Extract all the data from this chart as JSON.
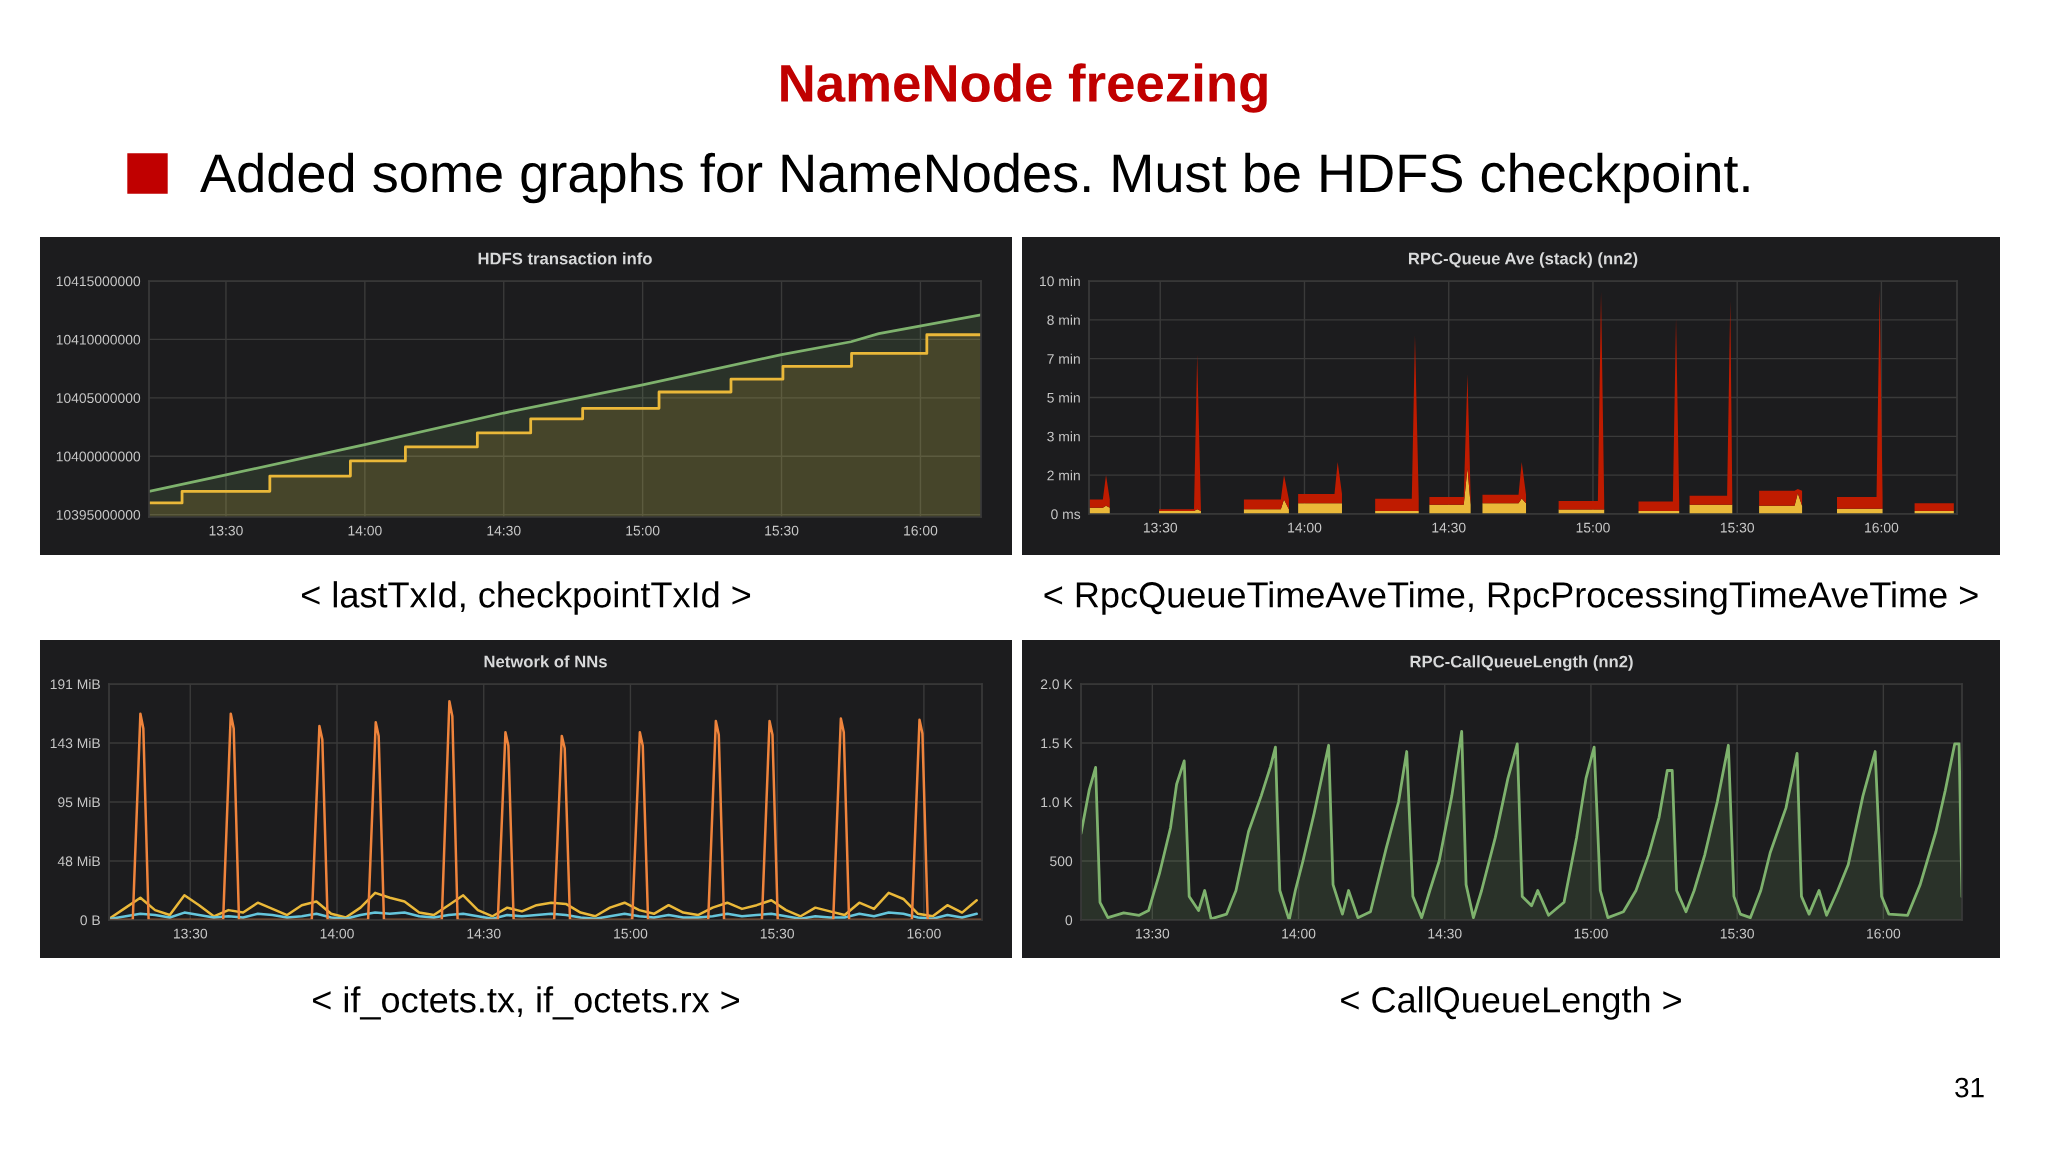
{
  "chart_data": [
    {
      "type": "other",
      "title": "NameNode freezing",
      "subtitle": "Added some graphs for NameNodes. Must be HDFS checkpoint.",
      "annotations": [
        "31"
      ]
    },
    {
      "type": "area",
      "title": "HDFS transaction info",
      "annotations": [
        "< lastTxId, checkpointTxId >"
      ],
      "grid": true,
      "xlim": [
        13.223,
        16.218
      ],
      "ylim": [
        10394800000,
        10415000000
      ],
      "xticks": [
        {
          "value": 13.5,
          "label": "13:30"
        },
        {
          "value": 14,
          "label": "14:00"
        },
        {
          "value": 14.5,
          "label": "14:30"
        },
        {
          "value": 15,
          "label": "15:00"
        },
        {
          "value": 15.5,
          "label": "15:30"
        },
        {
          "value": 16,
          "label": "16:00"
        }
      ],
      "yticks": [
        10395000000,
        10400000000,
        10405000000,
        10410000000,
        10415000000
      ],
      "series": [
        {
          "type": "area",
          "color": "#7eb26d",
          "x": [
            13.223,
            13.5,
            14.0,
            14.5,
            15.0,
            15.5,
            15.75,
            15.85,
            16.218
          ],
          "values": [
            10397000000,
            10398400000,
            10401000000,
            10403700000,
            10406100000,
            10408700000,
            10409800000,
            10410500000,
            10412100000
          ]
        },
        {
          "type": "area",
          "color": "#eab839",
          "x": [
            13.223,
            13.342,
            13.342,
            13.658,
            13.658,
            13.948,
            13.948,
            14.146,
            14.146,
            14.405,
            14.405,
            14.597,
            14.597,
            14.784,
            14.784,
            15.059,
            15.059,
            15.318,
            15.318,
            15.505,
            15.505,
            15.752,
            15.752,
            16.023,
            16.023,
            16.218
          ],
          "values": [
            10396000000,
            10396000000,
            10397000000,
            10397000000,
            10398300000,
            10398300000,
            10399600000,
            10399600000,
            10400800000,
            10400800000,
            10402000000,
            10402000000,
            10403200000,
            10403200000,
            10404100000,
            10404100000,
            10405500000,
            10405500000,
            10406600000,
            10406600000,
            10407700000,
            10407700000,
            10408800000,
            10408800000,
            10410400000,
            10410400000
          ]
        }
      ]
    },
    {
      "type": "area",
      "stacked": true,
      "title": "RPC-Queue Ave (stack) (nn2)",
      "annotations": [
        "< RpcQueueTimeAveTime, RpcProcessingTimeAveTime >"
      ],
      "grid": true,
      "xlim": [
        13.253,
        16.262
      ],
      "ylim": [
        0,
        10
      ],
      "xticks": [
        {
          "value": 13.5,
          "label": "13:30"
        },
        {
          "value": 14,
          "label": "14:00"
        },
        {
          "value": 14.5,
          "label": "14:30"
        },
        {
          "value": 15,
          "label": "15:00"
        },
        {
          "value": 15.5,
          "label": "15:30"
        },
        {
          "value": 16,
          "label": "16:00"
        }
      ],
      "yticks": [
        {
          "value": 0,
          "label": "0 ms"
        },
        {
          "value": 1.6667,
          "label": "2 min"
        },
        {
          "value": 3.3333,
          "label": "3 min"
        },
        {
          "value": 5,
          "label": "5 min"
        },
        {
          "value": 6.6667,
          "label": "7 min"
        },
        {
          "value": 8.3333,
          "label": "8 min"
        },
        {
          "value": 10,
          "label": "10 min"
        }
      ],
      "x": [
        13.253,
        13.301,
        13.312,
        13.325,
        13.33,
        13.496,
        13.617,
        13.628,
        13.641,
        13.65,
        13.79,
        13.918,
        13.929,
        13.946,
        13.955,
        13.978,
        14.104,
        14.115,
        14.13,
        14.14,
        14.245,
        14.372,
        14.383,
        14.396,
        14.41,
        14.433,
        14.552,
        14.565,
        14.576,
        14.59,
        14.617,
        14.742,
        14.753,
        14.768,
        14.78,
        14.881,
        15.017,
        15.028,
        15.039,
        15.05,
        15.158,
        15.277,
        15.288,
        15.299,
        15.31,
        15.335,
        15.465,
        15.476,
        15.483,
        15.49,
        15.576,
        15.699,
        15.71,
        15.725,
        15.74,
        15.846,
        15.983,
        15.994,
        16.004,
        16.02,
        16.115,
        16.251
      ],
      "series": [
        {
          "color": "#eab839",
          "values": [
            0.27,
            0.27,
            0.35,
            0.27,
            null,
            0.13,
            0.13,
            0.2,
            0.13,
            null,
            0.2,
            0.2,
            0.62,
            0.2,
            null,
            0.46,
            0.46,
            0.46,
            0.46,
            null,
            0.13,
            0.13,
            0.13,
            0.13,
            null,
            0.4,
            0.4,
            1.96,
            0.4,
            null,
            0.46,
            0.46,
            0.67,
            0.46,
            null,
            0.19,
            0.19,
            0.19,
            0.19,
            null,
            0.13,
            0.13,
            0.13,
            0.13,
            null,
            0.4,
            0.4,
            0.4,
            0.4,
            null,
            0.35,
            0.35,
            0.89,
            0.35,
            null,
            0.22,
            0.22,
            0.22,
            0.22,
            null,
            0.13,
            0.13
          ]
        },
        {
          "color": "#bf1b00",
          "values": [
            0.35,
            0.35,
            1.32,
            0.35,
            null,
            0.07,
            0.07,
            6.65,
            0.07,
            null,
            0.42,
            0.42,
            1.05,
            0.42,
            null,
            0.4,
            0.4,
            1.77,
            0.4,
            null,
            0.52,
            0.52,
            7.53,
            0.52,
            null,
            0.33,
            0.33,
            4.04,
            0.33,
            null,
            0.37,
            0.37,
            1.56,
            0.37,
            null,
            0.37,
            0.37,
            9.35,
            0.37,
            null,
            0.41,
            0.41,
            8.26,
            0.41,
            null,
            0.38,
            0.38,
            8.74,
            0.38,
            null,
            0.65,
            0.65,
            0.18,
            0.65,
            null,
            0.51,
            0.51,
            9.38,
            0.51,
            null,
            0.33,
            0.33
          ]
        }
      ]
    },
    {
      "type": "line",
      "title": "Network of NNs",
      "annotations": [
        "< if_octets.tx, if_octets.rx >"
      ],
      "grid": true,
      "xlim": [
        13.223,
        16.198
      ],
      "ylim": [
        0,
        191
      ],
      "xticks": [
        {
          "value": 13.5,
          "label": "13:30"
        },
        {
          "value": 14,
          "label": "14:00"
        },
        {
          "value": 14.5,
          "label": "14:30"
        },
        {
          "value": 15,
          "label": "15:00"
        },
        {
          "value": 15.5,
          "label": "15:30"
        },
        {
          "value": 16,
          "label": "16:00"
        }
      ],
      "yticks": [
        {
          "value": 0,
          "label": "0 B"
        },
        {
          "value": 47.75,
          "label": "48 MiB"
        },
        {
          "value": 95.5,
          "label": "95 MiB"
        },
        {
          "value": 143.25,
          "label": "143 MiB"
        },
        {
          "value": 191,
          "label": "191 MiB"
        }
      ],
      "series": [
        {
          "color": "#eab839",
          "x": [
            13.23,
            13.28,
            13.33,
            13.38,
            13.43,
            13.48,
            13.53,
            13.58,
            13.63,
            13.68,
            13.73,
            13.78,
            13.83,
            13.88,
            13.93,
            13.98,
            14.03,
            14.08,
            14.13,
            14.18,
            14.23,
            14.28,
            14.33,
            14.38,
            14.43,
            14.48,
            14.53,
            14.58,
            14.63,
            14.68,
            14.73,
            14.78,
            14.83,
            14.88,
            14.93,
            14.98,
            15.03,
            15.08,
            15.13,
            15.18,
            15.23,
            15.28,
            15.33,
            15.38,
            15.43,
            15.48,
            15.53,
            15.58,
            15.63,
            15.68,
            15.73,
            15.78,
            15.83,
            15.88,
            15.93,
            15.98,
            16.03,
            16.08,
            16.13,
            16.18
          ],
          "values": [
            2,
            10,
            18,
            8,
            4,
            20,
            12,
            3,
            8,
            6,
            14,
            9,
            4,
            12,
            15,
            5,
            2,
            10,
            22,
            18,
            15,
            6,
            4,
            12,
            20,
            8,
            3,
            10,
            7,
            12,
            14,
            13,
            6,
            3,
            10,
            14,
            8,
            5,
            12,
            6,
            4,
            10,
            14,
            9,
            12,
            16,
            8,
            3,
            10,
            7,
            4,
            14,
            9,
            22,
            17,
            5,
            3,
            12,
            6,
            16
          ]
        },
        {
          "color": "#65c5db",
          "x": [
            13.23,
            13.28,
            13.33,
            13.38,
            13.43,
            13.48,
            13.53,
            13.58,
            13.63,
            13.68,
            13.73,
            13.78,
            13.83,
            13.88,
            13.93,
            13.98,
            14.03,
            14.08,
            14.13,
            14.18,
            14.23,
            14.28,
            14.33,
            14.38,
            14.43,
            14.48,
            14.53,
            14.58,
            14.63,
            14.68,
            14.73,
            14.78,
            14.83,
            14.88,
            14.93,
            14.98,
            15.03,
            15.08,
            15.13,
            15.18,
            15.23,
            15.28,
            15.33,
            15.38,
            15.43,
            15.48,
            15.53,
            15.58,
            15.63,
            15.68,
            15.73,
            15.78,
            15.83,
            15.88,
            15.93,
            15.98,
            16.03,
            16.08,
            16.13,
            16.18
          ],
          "values": [
            1,
            3,
            5,
            4,
            2,
            6,
            4,
            2,
            3,
            2,
            5,
            4,
            2,
            3,
            5,
            2,
            1,
            4,
            6,
            5,
            6,
            3,
            2,
            4,
            5,
            3,
            1,
            4,
            3,
            4,
            5,
            4,
            2,
            1,
            3,
            5,
            3,
            2,
            4,
            2,
            2,
            3,
            5,
            3,
            4,
            5,
            3,
            1,
            3,
            2,
            2,
            5,
            3,
            6,
            5,
            2,
            1,
            4,
            2,
            5
          ]
        },
        {
          "color": "#ef843c",
          "x": [
            13.223,
            13.304,
            13.33,
            13.34,
            13.358,
            13.612,
            13.638,
            13.648,
            13.666,
            13.914,
            13.94,
            13.95,
            13.968,
            14.106,
            14.132,
            14.142,
            14.16,
            14.357,
            14.383,
            14.393,
            14.411,
            14.548,
            14.574,
            14.584,
            14.602,
            14.74,
            14.766,
            14.776,
            14.794,
            15.006,
            15.032,
            15.042,
            15.06,
            15.265,
            15.291,
            15.301,
            15.319,
            15.448,
            15.474,
            15.484,
            15.502,
            15.691,
            15.717,
            15.727,
            15.745,
            15.959,
            15.985,
            15.995,
            16.013,
            16.198
          ],
          "values": [
            0,
            0,
            167,
            155,
            0,
            0,
            167,
            155,
            0,
            0,
            157,
            146,
            0,
            0,
            160,
            149,
            0,
            0,
            177,
            165,
            0,
            0,
            152,
            141,
            0,
            0,
            149,
            139,
            0,
            0,
            152,
            141,
            0,
            0,
            161,
            150,
            0,
            0,
            161,
            150,
            0,
            0,
            163,
            152,
            0,
            0,
            162,
            151,
            0,
            0
          ]
        }
      ]
    },
    {
      "type": "area",
      "title": "RPC-CallQueueLength (nn2)",
      "annotations": [
        "< CallQueueLength >"
      ],
      "grid": true,
      "xlim": [
        13.256,
        16.269
      ],
      "ylim": [
        0,
        2000
      ],
      "xticks": [
        {
          "value": 13.5,
          "label": "13:30"
        },
        {
          "value": 14,
          "label": "14:00"
        },
        {
          "value": 14.5,
          "label": "14:30"
        },
        {
          "value": 15,
          "label": "15:00"
        },
        {
          "value": 15.5,
          "label": "15:30"
        },
        {
          "value": 16,
          "label": "16:00"
        }
      ],
      "yticks": [
        0,
        500,
        {
          "value": 1000,
          "label": "1.0 K"
        },
        {
          "value": 1500,
          "label": "1.5 K"
        },
        {
          "value": 2000,
          "label": "2.0 K"
        }
      ],
      "series": [
        {
          "color": "#7eb26d",
          "x": [
            13.256,
            13.284,
            13.306,
            13.321,
            13.348,
            13.402,
            13.455,
            13.487,
            13.524,
            13.562,
            13.583,
            13.609,
            13.626,
            13.658,
            13.679,
            13.701,
            13.754,
            13.786,
            13.829,
            13.872,
            13.904,
            13.921,
            13.936,
            13.968,
            13.989,
            14.015,
            14.053,
            14.083,
            14.103,
            14.118,
            14.15,
            14.171,
            14.203,
            14.246,
            14.299,
            14.342,
            14.37,
            14.391,
            14.421,
            14.449,
            14.481,
            14.524,
            14.558,
            14.573,
            14.598,
            14.626,
            14.673,
            14.716,
            14.748,
            14.765,
            14.797,
            14.818,
            14.855,
            14.908,
            14.951,
            14.983,
            15.011,
            15.032,
            15.058,
            15.111,
            15.154,
            15.197,
            15.233,
            15.261,
            15.278,
            15.293,
            15.325,
            15.353,
            15.389,
            15.432,
            15.47,
            15.489,
            15.511,
            15.545,
            15.581,
            15.613,
            15.667,
            15.705,
            15.72,
            15.746,
            15.78,
            15.806,
            15.844,
            15.88,
            15.93,
            15.972,
            15.994,
            16.019,
            16.083,
            16.126,
            16.18,
            16.212,
            16.244,
            16.259,
            16.269
          ],
          "values": [
            733,
            1100,
            1294,
            150,
            20,
            60,
            40,
            80,
            390,
            780,
            1150,
            1348,
            200,
            80,
            250,
            10,
            50,
            250,
            750,
            1050,
            1300,
            1465,
            250,
            0,
            250,
            500,
            900,
            1250,
            1481,
            300,
            50,
            250,
            20,
            70,
            600,
            1000,
            1428,
            200,
            20,
            250,
            500,
            1050,
            1599,
            300,
            20,
            250,
            700,
            1200,
            1492,
            200,
            120,
            250,
            40,
            150,
            700,
            1200,
            1465,
            250,
            20,
            70,
            250,
            550,
            870,
            1267,
            1267,
            250,
            70,
            250,
            550,
            1000,
            1481,
            200,
            50,
            20,
            250,
            570,
            950,
            1412,
            200,
            50,
            250,
            40,
            250,
            470,
            1050,
            1428,
            200,
            50,
            40,
            300,
            750,
            1100,
            1492,
            1492,
            198
          ]
        }
      ]
    }
  ]
}
